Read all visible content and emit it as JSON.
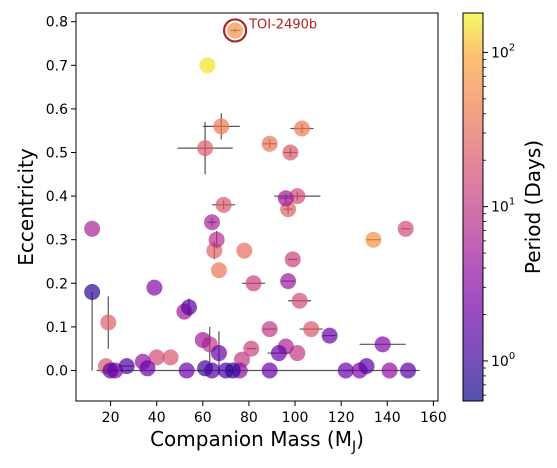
{
  "chart_data": {
    "type": "scatter",
    "xlabel": "Companion Mass (M",
    "xlabel_sub": "J",
    "xlabel_close": ")",
    "ylabel": "Eccentricity",
    "xlim": [
      5,
      162
    ],
    "ylim": [
      -0.07,
      0.82
    ],
    "x_ticks": [
      20,
      40,
      60,
      80,
      100,
      120,
      140,
      160
    ],
    "y_ticks": [
      0.0,
      0.1,
      0.2,
      0.3,
      0.4,
      0.5,
      0.6,
      0.7,
      0.8
    ],
    "y_tick_labels": [
      "0.0",
      "0.1",
      "0.2",
      "0.3",
      "0.4",
      "0.5",
      "0.6",
      "0.7",
      "0.8"
    ],
    "grid": false,
    "colorbar": {
      "label": "Period (Days)",
      "scale": "log",
      "range": [
        0.55,
        180
      ],
      "major_ticks": [
        1,
        10,
        100
      ],
      "tick_labels": [
        {
          "base": "10",
          "exp": "0"
        },
        {
          "base": "10",
          "exp": "1"
        },
        {
          "base": "10",
          "exp": "2"
        }
      ],
      "colormap": "plasma",
      "alpha": 0.7
    },
    "annotation": {
      "label": "TOI-2490b",
      "x": 74,
      "y": 0.78,
      "color": "#b22222"
    },
    "points": [
      {
        "x": 74,
        "y": 0.78,
        "period": 60,
        "xerr": 2,
        "yerr": 0.005
      },
      {
        "x": 62,
        "y": 0.7,
        "period": 150
      },
      {
        "x": 68,
        "y": 0.56,
        "period": 40,
        "xerr": 8,
        "yerr": 0.03
      },
      {
        "x": 61,
        "y": 0.51,
        "period": 22,
        "xerr": 12,
        "yerr": 0.06
      },
      {
        "x": 103,
        "y": 0.555,
        "period": 40,
        "xerr": 5,
        "yerr": 0.01
      },
      {
        "x": 89,
        "y": 0.52,
        "period": 35,
        "xerr": 3,
        "yerr": 0.01
      },
      {
        "x": 98,
        "y": 0.5,
        "period": 20,
        "xerr": 3,
        "yerr": 0.01
      },
      {
        "x": 101,
        "y": 0.4,
        "period": 15,
        "xerr": 10,
        "yerr": 0.01
      },
      {
        "x": 96,
        "y": 0.395,
        "period": 5,
        "xerr": 3,
        "yerr": 0.01
      },
      {
        "x": 69,
        "y": 0.38,
        "period": 20,
        "xerr": 5,
        "yerr": 0.01
      },
      {
        "x": 97,
        "y": 0.37,
        "period": 25,
        "xerr": 2,
        "yerr": 0.01
      },
      {
        "x": 64,
        "y": 0.34,
        "period": 6,
        "xerr": 2,
        "yerr": 0.01
      },
      {
        "x": 12,
        "y": 0.325,
        "period": 6
      },
      {
        "x": 148,
        "y": 0.325,
        "period": 15,
        "xerr": 2
      },
      {
        "x": 134,
        "y": 0.3,
        "period": 60,
        "xerr": 3
      },
      {
        "x": 66,
        "y": 0.3,
        "period": 8,
        "yerr": 0.02
      },
      {
        "x": 78,
        "y": 0.275,
        "period": 30
      },
      {
        "x": 65,
        "y": 0.275,
        "period": 25,
        "yerr": 0.02
      },
      {
        "x": 99,
        "y": 0.255,
        "period": 12,
        "xerr": 2
      },
      {
        "x": 67,
        "y": 0.23,
        "period": 35
      },
      {
        "x": 97,
        "y": 0.205,
        "period": 5,
        "xerr": 3
      },
      {
        "x": 82,
        "y": 0.2,
        "period": 12,
        "xerr": 5
      },
      {
        "x": 39,
        "y": 0.19,
        "period": 3
      },
      {
        "x": 12,
        "y": 0.18,
        "period": 0.8,
        "yerr_low": 0.18
      },
      {
        "x": 102,
        "y": 0.16,
        "period": 15,
        "xerr": 5
      },
      {
        "x": 54,
        "y": 0.145,
        "period": 1.5,
        "yerr": 0.02
      },
      {
        "x": 52,
        "y": 0.135,
        "period": 5
      },
      {
        "x": 19,
        "y": 0.11,
        "period": 22,
        "yerr": 0.06
      },
      {
        "x": 107,
        "y": 0.095,
        "period": 20,
        "xerr": 5
      },
      {
        "x": 89,
        "y": 0.095,
        "period": 10,
        "xerr": 3
      },
      {
        "x": 115,
        "y": 0.08,
        "period": 2,
        "xerr": 3
      },
      {
        "x": 60,
        "y": 0.07,
        "period": 5
      },
      {
        "x": 63,
        "y": 0.06,
        "period": 10,
        "yerr": 0.04
      },
      {
        "x": 138,
        "y": 0.06,
        "period": 3,
        "xerr": 10
      },
      {
        "x": 81,
        "y": 0.05,
        "period": 12,
        "xerr": 2
      },
      {
        "x": 96,
        "y": 0.055,
        "period": 6
      },
      {
        "x": 101,
        "y": 0.04,
        "period": 10
      },
      {
        "x": 93,
        "y": 0.04,
        "period": 2,
        "xerr": 5
      },
      {
        "x": 67,
        "y": 0.04,
        "period": 1.8,
        "yerr": 0.05
      },
      {
        "x": 40,
        "y": 0.03,
        "period": 15
      },
      {
        "x": 46,
        "y": 0.03,
        "period": 20
      },
      {
        "x": 77,
        "y": 0.025,
        "period": 10
      },
      {
        "x": 34,
        "y": 0.02,
        "period": 4
      },
      {
        "x": 18,
        "y": 0.01,
        "period": 20
      },
      {
        "x": 27,
        "y": 0.01,
        "period": 1.2,
        "xerr": 3
      },
      {
        "x": 36,
        "y": 0.005,
        "period": 2
      },
      {
        "x": 20,
        "y": 0.0,
        "period": 1.5,
        "xerr": 6
      },
      {
        "x": 22,
        "y": 0.0,
        "period": 3
      },
      {
        "x": 53,
        "y": 0.0,
        "period": 2
      },
      {
        "x": 61,
        "y": 0.005,
        "period": 1
      },
      {
        "x": 64,
        "y": 0.0,
        "period": 1.5
      },
      {
        "x": 70,
        "y": 0.0,
        "period": 1.2
      },
      {
        "x": 73,
        "y": 0.0,
        "period": 0.8
      },
      {
        "x": 76,
        "y": 0.0,
        "period": 4,
        "xerr": 3
      },
      {
        "x": 89,
        "y": 0.0,
        "period": 2,
        "xerr": 65
      },
      {
        "x": 122,
        "y": 0.0,
        "period": 2,
        "xerr": 3
      },
      {
        "x": 128,
        "y": 0.0,
        "period": 3
      },
      {
        "x": 131,
        "y": 0.01,
        "period": 1.5
      },
      {
        "x": 141,
        "y": 0.0,
        "period": 4
      },
      {
        "x": 149,
        "y": 0.0,
        "period": 1.5
      }
    ]
  }
}
